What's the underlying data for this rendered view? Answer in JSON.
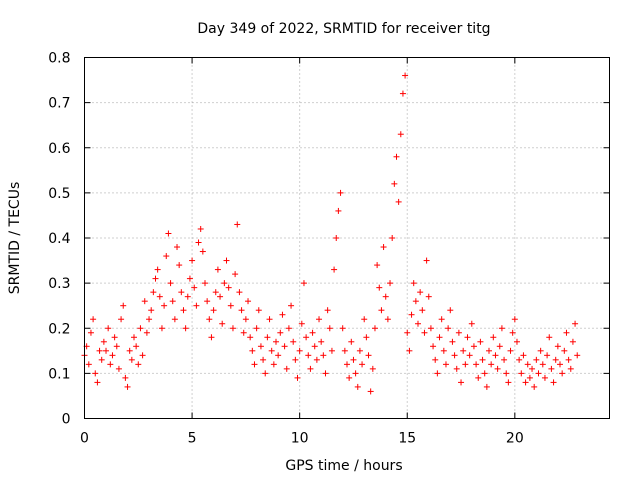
{
  "chart_data": {
    "type": "scatter",
    "title": "Day 349 of 2022, SRMTID for receiver titg",
    "xlabel": "GPS time / hours",
    "ylabel": "SRMTID / TECUs",
    "xlim": [
      0,
      24.4
    ],
    "ylim": [
      0,
      0.8
    ],
    "x_ticks": [
      0,
      5,
      10,
      15,
      20
    ],
    "x_tick_labels": [
      "0",
      "5",
      "10",
      "15",
      "20"
    ],
    "y_ticks": [
      0,
      0.1,
      0.2,
      0.3,
      0.4,
      0.5,
      0.6,
      0.7,
      0.8
    ],
    "y_tick_labels": [
      "0",
      "0.1",
      "0.2",
      "0.3",
      "0.4",
      "0.5",
      "0.6",
      "0.7",
      "0.8"
    ],
    "grid": true,
    "marker": "plus",
    "color": "#ff0000",
    "series": [
      {
        "name": "SRMTID",
        "points": [
          [
            0.0,
            0.14
          ],
          [
            0.1,
            0.16
          ],
          [
            0.2,
            0.12
          ],
          [
            0.3,
            0.19
          ],
          [
            0.4,
            0.22
          ],
          [
            0.5,
            0.1
          ],
          [
            0.6,
            0.08
          ],
          [
            0.7,
            0.15
          ],
          [
            0.8,
            0.13
          ],
          [
            0.9,
            0.17
          ],
          [
            1.0,
            0.15
          ],
          [
            1.1,
            0.2
          ],
          [
            1.2,
            0.12
          ],
          [
            1.3,
            0.14
          ],
          [
            1.4,
            0.18
          ],
          [
            1.5,
            0.16
          ],
          [
            1.6,
            0.11
          ],
          [
            1.7,
            0.22
          ],
          [
            1.8,
            0.25
          ],
          [
            1.9,
            0.09
          ],
          [
            2.0,
            0.07
          ],
          [
            2.1,
            0.15
          ],
          [
            2.2,
            0.13
          ],
          [
            2.3,
            0.18
          ],
          [
            2.4,
            0.16
          ],
          [
            2.5,
            0.12
          ],
          [
            2.6,
            0.2
          ],
          [
            2.7,
            0.14
          ],
          [
            2.8,
            0.26
          ],
          [
            2.9,
            0.19
          ],
          [
            3.0,
            0.22
          ],
          [
            3.1,
            0.24
          ],
          [
            3.2,
            0.28
          ],
          [
            3.3,
            0.31
          ],
          [
            3.4,
            0.33
          ],
          [
            3.5,
            0.27
          ],
          [
            3.6,
            0.2
          ],
          [
            3.7,
            0.25
          ],
          [
            3.8,
            0.36
          ],
          [
            3.9,
            0.41
          ],
          [
            4.0,
            0.3
          ],
          [
            4.1,
            0.26
          ],
          [
            4.2,
            0.22
          ],
          [
            4.3,
            0.38
          ],
          [
            4.4,
            0.34
          ],
          [
            4.5,
            0.28
          ],
          [
            4.6,
            0.24
          ],
          [
            4.7,
            0.2
          ],
          [
            4.8,
            0.27
          ],
          [
            4.9,
            0.31
          ],
          [
            5.0,
            0.35
          ],
          [
            5.1,
            0.29
          ],
          [
            5.2,
            0.25
          ],
          [
            5.3,
            0.39
          ],
          [
            5.4,
            0.42
          ],
          [
            5.5,
            0.37
          ],
          [
            5.6,
            0.3
          ],
          [
            5.7,
            0.26
          ],
          [
            5.8,
            0.22
          ],
          [
            5.9,
            0.18
          ],
          [
            6.0,
            0.24
          ],
          [
            6.1,
            0.28
          ],
          [
            6.2,
            0.33
          ],
          [
            6.3,
            0.27
          ],
          [
            6.4,
            0.21
          ],
          [
            6.5,
            0.3
          ],
          [
            6.6,
            0.35
          ],
          [
            6.7,
            0.29
          ],
          [
            6.8,
            0.25
          ],
          [
            6.9,
            0.2
          ],
          [
            7.0,
            0.32
          ],
          [
            7.1,
            0.43
          ],
          [
            7.2,
            0.28
          ],
          [
            7.3,
            0.24
          ],
          [
            7.4,
            0.19
          ],
          [
            7.5,
            0.22
          ],
          [
            7.6,
            0.26
          ],
          [
            7.7,
            0.18
          ],
          [
            7.8,
            0.15
          ],
          [
            7.9,
            0.12
          ],
          [
            8.0,
            0.2
          ],
          [
            8.1,
            0.24
          ],
          [
            8.2,
            0.16
          ],
          [
            8.3,
            0.13
          ],
          [
            8.4,
            0.1
          ],
          [
            8.5,
            0.18
          ],
          [
            8.6,
            0.22
          ],
          [
            8.7,
            0.15
          ],
          [
            8.8,
            0.12
          ],
          [
            8.9,
            0.17
          ],
          [
            9.0,
            0.14
          ],
          [
            9.1,
            0.19
          ],
          [
            9.2,
            0.23
          ],
          [
            9.3,
            0.16
          ],
          [
            9.4,
            0.11
          ],
          [
            9.5,
            0.2
          ],
          [
            9.6,
            0.25
          ],
          [
            9.7,
            0.17
          ],
          [
            9.8,
            0.13
          ],
          [
            9.9,
            0.09
          ],
          [
            10.0,
            0.15
          ],
          [
            10.1,
            0.21
          ],
          [
            10.2,
            0.3
          ],
          [
            10.3,
            0.18
          ],
          [
            10.4,
            0.14
          ],
          [
            10.5,
            0.11
          ],
          [
            10.6,
            0.19
          ],
          [
            10.7,
            0.16
          ],
          [
            10.8,
            0.13
          ],
          [
            10.9,
            0.22
          ],
          [
            11.0,
            0.17
          ],
          [
            11.1,
            0.14
          ],
          [
            11.2,
            0.1
          ],
          [
            11.3,
            0.24
          ],
          [
            11.4,
            0.2
          ],
          [
            11.5,
            0.15
          ],
          [
            11.6,
            0.33
          ],
          [
            11.7,
            0.4
          ],
          [
            11.8,
            0.46
          ],
          [
            11.9,
            0.5
          ],
          [
            12.0,
            0.2
          ],
          [
            12.1,
            0.15
          ],
          [
            12.2,
            0.12
          ],
          [
            12.3,
            0.09
          ],
          [
            12.4,
            0.17
          ],
          [
            12.5,
            0.13
          ],
          [
            12.6,
            0.1
          ],
          [
            12.7,
            0.07
          ],
          [
            12.8,
            0.15
          ],
          [
            12.9,
            0.12
          ],
          [
            13.0,
            0.22
          ],
          [
            13.1,
            0.18
          ],
          [
            13.2,
            0.14
          ],
          [
            13.3,
            0.06
          ],
          [
            13.4,
            0.11
          ],
          [
            13.5,
            0.2
          ],
          [
            13.6,
            0.34
          ],
          [
            13.7,
            0.29
          ],
          [
            13.8,
            0.24
          ],
          [
            13.9,
            0.38
          ],
          [
            14.0,
            0.27
          ],
          [
            14.1,
            0.22
          ],
          [
            14.2,
            0.3
          ],
          [
            14.3,
            0.4
          ],
          [
            14.4,
            0.52
          ],
          [
            14.5,
            0.58
          ],
          [
            14.6,
            0.48
          ],
          [
            14.7,
            0.63
          ],
          [
            14.8,
            0.72
          ],
          [
            14.9,
            0.76
          ],
          [
            15.0,
            0.19
          ],
          [
            15.1,
            0.15
          ],
          [
            15.2,
            0.23
          ],
          [
            15.3,
            0.3
          ],
          [
            15.4,
            0.26
          ],
          [
            15.5,
            0.21
          ],
          [
            15.6,
            0.28
          ],
          [
            15.7,
            0.24
          ],
          [
            15.8,
            0.19
          ],
          [
            15.9,
            0.35
          ],
          [
            16.0,
            0.27
          ],
          [
            16.1,
            0.2
          ],
          [
            16.2,
            0.16
          ],
          [
            16.3,
            0.13
          ],
          [
            16.4,
            0.1
          ],
          [
            16.5,
            0.18
          ],
          [
            16.6,
            0.22
          ],
          [
            16.7,
            0.15
          ],
          [
            16.8,
            0.12
          ],
          [
            16.9,
            0.2
          ],
          [
            17.0,
            0.24
          ],
          [
            17.1,
            0.17
          ],
          [
            17.2,
            0.14
          ],
          [
            17.3,
            0.11
          ],
          [
            17.4,
            0.19
          ],
          [
            17.5,
            0.08
          ],
          [
            17.6,
            0.15
          ],
          [
            17.7,
            0.12
          ],
          [
            17.8,
            0.18
          ],
          [
            17.9,
            0.14
          ],
          [
            18.0,
            0.21
          ],
          [
            18.1,
            0.16
          ],
          [
            18.2,
            0.12
          ],
          [
            18.3,
            0.09
          ],
          [
            18.4,
            0.17
          ],
          [
            18.5,
            0.13
          ],
          [
            18.6,
            0.1
          ],
          [
            18.7,
            0.07
          ],
          [
            18.8,
            0.15
          ],
          [
            18.9,
            0.12
          ],
          [
            19.0,
            0.18
          ],
          [
            19.1,
            0.14
          ],
          [
            19.2,
            0.11
          ],
          [
            19.3,
            0.16
          ],
          [
            19.4,
            0.2
          ],
          [
            19.5,
            0.13
          ],
          [
            19.6,
            0.1
          ],
          [
            19.7,
            0.08
          ],
          [
            19.8,
            0.15
          ],
          [
            19.9,
            0.19
          ],
          [
            20.0,
            0.22
          ],
          [
            20.1,
            0.17
          ],
          [
            20.2,
            0.13
          ],
          [
            20.3,
            0.1
          ],
          [
            20.4,
            0.14
          ],
          [
            20.5,
            0.08
          ],
          [
            20.6,
            0.12
          ],
          [
            20.7,
            0.09
          ],
          [
            20.8,
            0.11
          ],
          [
            20.9,
            0.07
          ],
          [
            21.0,
            0.13
          ],
          [
            21.1,
            0.1
          ],
          [
            21.2,
            0.15
          ],
          [
            21.3,
            0.12
          ],
          [
            21.4,
            0.09
          ],
          [
            21.5,
            0.14
          ],
          [
            21.6,
            0.18
          ],
          [
            21.7,
            0.11
          ],
          [
            21.8,
            0.08
          ],
          [
            21.9,
            0.13
          ],
          [
            22.0,
            0.16
          ],
          [
            22.1,
            0.12
          ],
          [
            22.2,
            0.1
          ],
          [
            22.3,
            0.15
          ],
          [
            22.4,
            0.19
          ],
          [
            22.5,
            0.13
          ],
          [
            22.6,
            0.11
          ],
          [
            22.7,
            0.17
          ],
          [
            22.8,
            0.21
          ],
          [
            22.9,
            0.14
          ]
        ]
      }
    ]
  }
}
